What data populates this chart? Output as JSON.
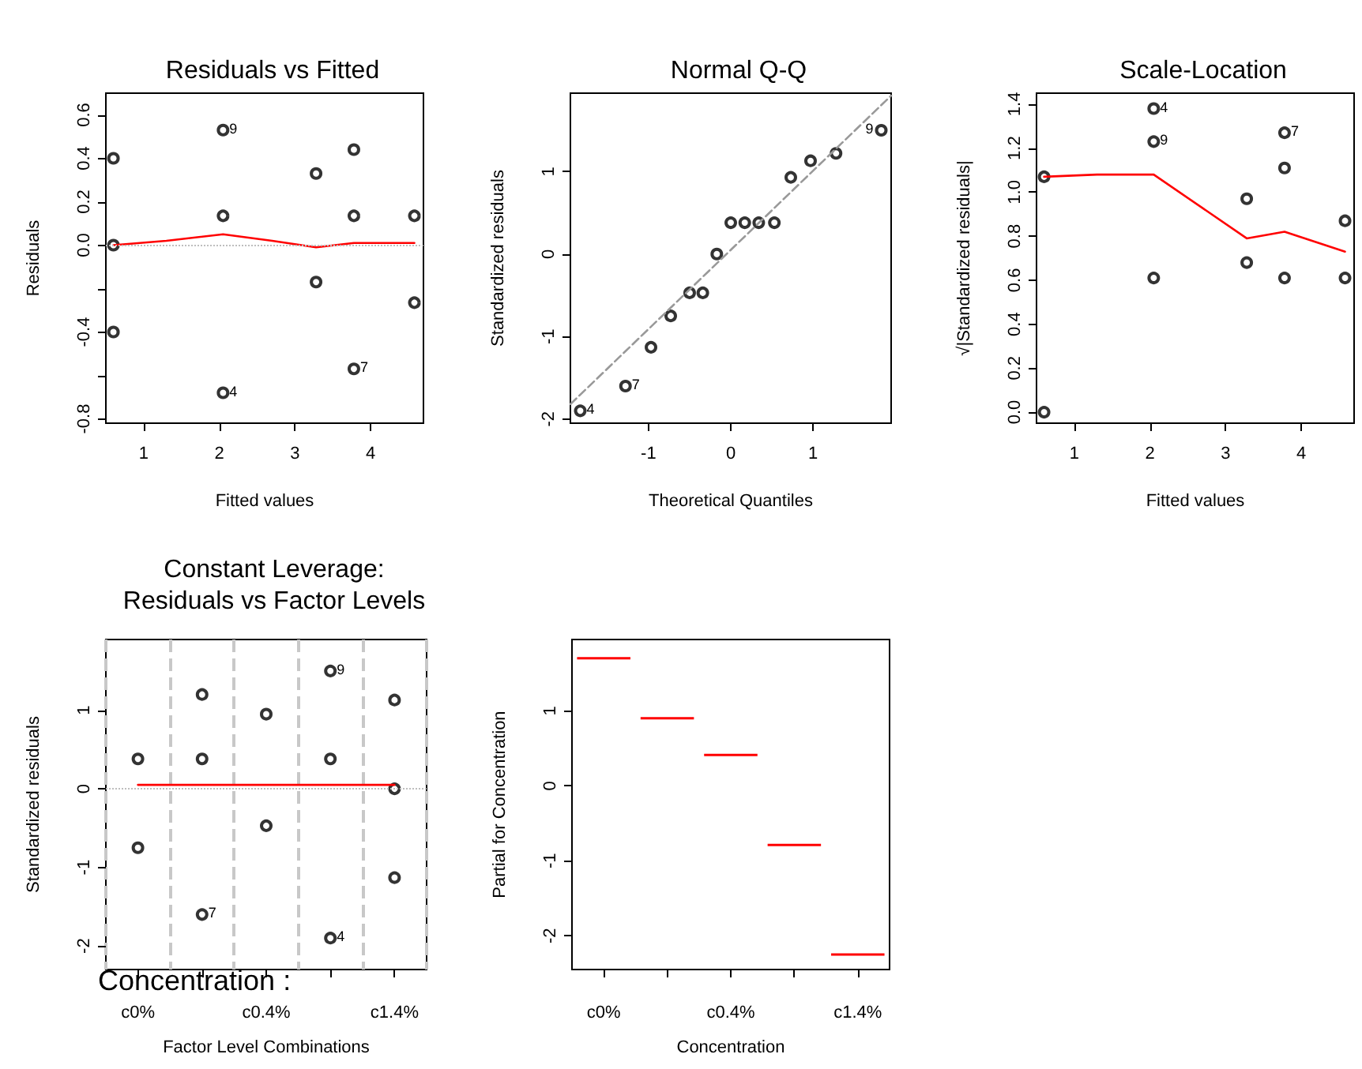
{
  "chart_data": [
    {
      "type": "scatter",
      "title": "Residuals vs Fitted",
      "xlabel": "Fitted values",
      "ylabel": "Residuals",
      "xlim": [
        0.5,
        4.7
      ],
      "xticks": [
        1,
        2,
        3,
        4
      ],
      "ylim": [
        -0.82,
        0.7
      ],
      "yticks": [
        {
          "value": -0.8,
          "label": "-0.8"
        },
        {
          "value": -0.6,
          "label": null
        },
        {
          "value": -0.4,
          "label": "-0.4"
        },
        {
          "value": -0.2,
          "label": null
        },
        {
          "value": 0,
          "label": "0.0"
        },
        {
          "value": 0.2,
          "label": "0.2"
        },
        {
          "value": 0.4,
          "label": "0.4"
        },
        {
          "value": 0.6,
          "label": "0.6"
        }
      ],
      "marker": "circle",
      "ref_lines": [
        {
          "axis": "y",
          "value": 0,
          "color": "#bebebe",
          "line_style": "dotted"
        }
      ],
      "annotations": [
        {
          "text": "9",
          "x": 2.05,
          "y": 0.53
        },
        {
          "text": "4",
          "x": 2.05,
          "y": -0.68
        },
        {
          "text": "7",
          "x": 3.78,
          "y": -0.57
        }
      ],
      "series": [
        {
          "color": "#000000",
          "x": [
            0.6,
            0.6,
            0.6,
            2.05,
            2.05,
            2.05,
            3.28,
            3.28,
            3.78,
            3.78,
            3.78,
            4.58,
            4.58
          ],
          "values": [
            0.4,
            0,
            -0.4,
            0.53,
            0.135,
            -0.68,
            0.33,
            -0.17,
            0.44,
            0.135,
            -0.57,
            0.135,
            -0.265
          ]
        },
        {
          "type": "line",
          "marker": "none",
          "color": "#ff0000",
          "x": [
            0.6,
            1.3,
            2.05,
            2.7,
            3.28,
            3.78,
            4.58
          ],
          "values": [
            0,
            0.02,
            0.05,
            0.02,
            -0.01,
            0.01,
            0.01
          ]
        }
      ]
    },
    {
      "type": "scatter",
      "title": "Normal Q-Q",
      "xlabel": "Theoretical Quantiles",
      "ylabel": "Standardized residuals",
      "xlim": [
        -1.95,
        1.95
      ],
      "xticks": [
        -1,
        0,
        1
      ],
      "ylim": [
        -2.05,
        1.95
      ],
      "yticks": [
        -2,
        -1,
        0,
        1
      ],
      "marker": "circle",
      "annotations": [
        {
          "text": "4",
          "x": -1.83,
          "y": -1.9
        },
        {
          "text": "7",
          "x": -1.28,
          "y": -1.6
        },
        {
          "text": "9",
          "x": 1.83,
          "y": 1.5
        }
      ],
      "series": [
        {
          "color": "#000000",
          "x": [
            -1.83,
            -1.28,
            -0.97,
            -0.73,
            -0.5,
            -0.34,
            -0.17,
            0,
            0.17,
            0.34,
            0.53,
            0.73,
            0.97,
            1.28,
            1.83
          ],
          "values": [
            -1.9,
            -1.6,
            -1.13,
            -0.75,
            -0.47,
            -0.47,
            0,
            0.38,
            0.38,
            0.38,
            0.38,
            0.93,
            1.13,
            1.22,
            1.5
          ]
        },
        {
          "type": "line",
          "marker": "none",
          "line_style": "dashed",
          "color": "#999999",
          "x": [
            -1.95,
            1.95
          ],
          "values": [
            -1.82,
            1.92
          ]
        }
      ]
    },
    {
      "type": "scatter",
      "title": "Scale-Location",
      "xlabel": "Fitted values",
      "ylabel": "√|Standardized residuals|",
      "xlim": [
        0.5,
        4.7
      ],
      "xticks": [
        1,
        2,
        3,
        4
      ],
      "ylim": [
        -0.05,
        1.45
      ],
      "yticks": [
        {
          "value": 0,
          "label": "0.0"
        },
        {
          "value": 0.2,
          "label": "0.2"
        },
        {
          "value": 0.4,
          "label": "0.4"
        },
        {
          "value": 0.6,
          "label": "0.6"
        },
        {
          "value": 0.8,
          "label": "0.8"
        },
        {
          "value": 1,
          "label": "1.0"
        },
        {
          "value": 1.2,
          "label": "1.2"
        },
        {
          "value": 1.4,
          "label": "1.4"
        }
      ],
      "marker": "circle",
      "annotations": [
        {
          "text": "4",
          "x": 2.05,
          "y": 1.38
        },
        {
          "text": "9",
          "x": 2.05,
          "y": 1.23
        },
        {
          "text": "7",
          "x": 3.78,
          "y": 1.27
        }
      ],
      "series": [
        {
          "color": "#000000",
          "x": [
            0.6,
            0.6,
            2.05,
            2.05,
            2.05,
            3.28,
            3.28,
            3.78,
            3.78,
            3.78,
            4.58,
            4.58
          ],
          "values": [
            1.07,
            0,
            1.38,
            1.23,
            0.61,
            0.97,
            0.68,
            1.27,
            1.11,
            0.61,
            0.87,
            0.61
          ]
        },
        {
          "type": "line",
          "marker": "none",
          "color": "#ff0000",
          "x": [
            0.6,
            1.3,
            2.05,
            3.28,
            3.78,
            4.58
          ],
          "values": [
            1.07,
            1.08,
            1.08,
            0.79,
            0.82,
            0.73
          ]
        }
      ]
    },
    {
      "type": "scatter",
      "title": "Constant Leverage:\nResiduals vs Factor Levels",
      "xlabel": "Factor Level Combinations",
      "ylabel": "Standardized residuals",
      "categories": [
        "c0%",
        null,
        "c0.4%",
        null,
        "c1.4%"
      ],
      "ylim": [
        -2.3,
        1.9
      ],
      "yticks": [
        -2,
        -1,
        0,
        1
      ],
      "marker": "circle",
      "grid": "x",
      "annotations": [
        "Concentration :",
        {
          "text": "9",
          "y": 1.5
        },
        {
          "text": "7",
          "y": -1.6
        },
        {
          "text": "4",
          "y": -1.9
        }
      ],
      "ref_lines": [
        {
          "axis": "y",
          "value": 0,
          "color": "#bebebe",
          "line_style": "dotted"
        }
      ],
      "series": [
        {
          "color": "#000000",
          "values": [
            0.38,
            1.2,
            0.95,
            1.5,
            1.13
          ]
        },
        {
          "color": "#000000",
          "values": [
            -0.75,
            0.38,
            -0.47,
            0.38,
            0
          ]
        },
        {
          "color": "#000000",
          "values": [
            null,
            -1.6,
            null,
            -1.9,
            -1.13
          ]
        },
        {
          "type": "line",
          "marker": "none",
          "color": "#ff0000",
          "values": [
            0.05,
            0.05,
            0.05,
            0.05,
            0.05
          ]
        }
      ]
    },
    {
      "type": "box",
      "xlabel": "Concentration",
      "ylabel": "Partial for Concentration",
      "categories": [
        "c0%",
        null,
        "c0.4%",
        null,
        "c1.4%"
      ],
      "ylim": [
        -2.45,
        1.95
      ],
      "yticks": [
        -2,
        -1,
        0,
        1
      ],
      "series": [
        {
          "color": "#ff0000",
          "boxes": [
            {
              "low": 1.7,
              "q1": 1.7,
              "median": 1.7,
              "q3": 1.7,
              "high": 1.7
            },
            {
              "low": 0.9,
              "q1": 0.9,
              "median": 0.9,
              "q3": 0.9,
              "high": 0.9
            },
            {
              "low": 0.41,
              "q1": 0.41,
              "median": 0.41,
              "q3": 0.41,
              "high": 0.41
            },
            {
              "low": -0.79,
              "q1": -0.79,
              "median": -0.79,
              "q3": -0.79,
              "high": -0.79
            },
            {
              "low": -2.25,
              "q1": -2.25,
              "median": -2.25,
              "q3": -2.25,
              "high": -2.25
            }
          ]
        }
      ]
    }
  ]
}
